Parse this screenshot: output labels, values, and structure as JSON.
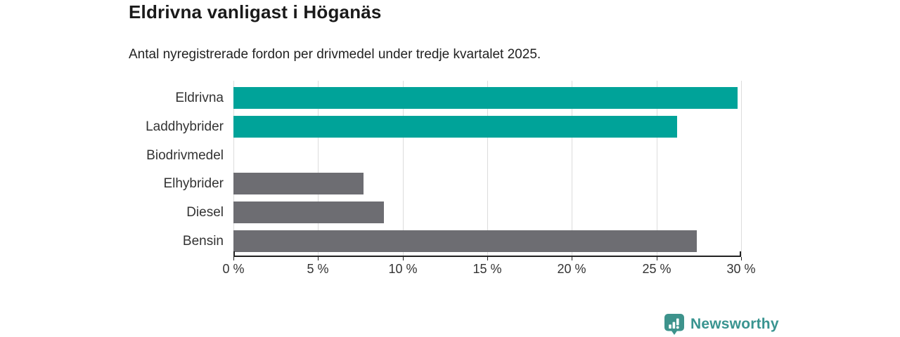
{
  "header": {
    "title": "Eldrivna vanligast i Höganäs",
    "subtitle": "Antal nyregistrerade fordon per drivmedel under tredje kvartalet 2025."
  },
  "chart_data": {
    "type": "bar",
    "orientation": "horizontal",
    "title": "Eldrivna vanligast i Höganäs",
    "subtitle": "Antal nyregistrerade fordon per drivmedel under tredje kvartalet 2025.",
    "categories": [
      "Eldrivna",
      "Laddhybrider",
      "Biodrivmedel",
      "Elhybrider",
      "Diesel",
      "Bensin"
    ],
    "values": [
      29.8,
      26.2,
      0,
      7.7,
      8.9,
      27.4
    ],
    "unit": "%",
    "xlim": [
      0,
      30
    ],
    "x_tick_values": [
      0,
      5,
      10,
      15,
      20,
      25,
      30
    ],
    "x_tick_labels": [
      "0 %",
      "5 %",
      "10 %",
      "15 %",
      "20 %",
      "25 %",
      "30 %"
    ],
    "grid": true,
    "legend": false,
    "bar_colors": [
      "#00a399",
      "#00a399",
      "#6d6d72",
      "#6d6d72",
      "#6d6d72",
      "#6d6d72"
    ]
  },
  "colors": {
    "accent_teal": "#00a399",
    "bar_gray": "#6d6d72",
    "gridline": "#dcdcdc",
    "axis": "#222222",
    "title_text": "#1a1a1a",
    "label_text": "#333333",
    "brand_teal": "#399490"
  },
  "branding": {
    "logo_text": "Newsworthy",
    "logo_icon": "bar-chart-bubble-icon"
  }
}
